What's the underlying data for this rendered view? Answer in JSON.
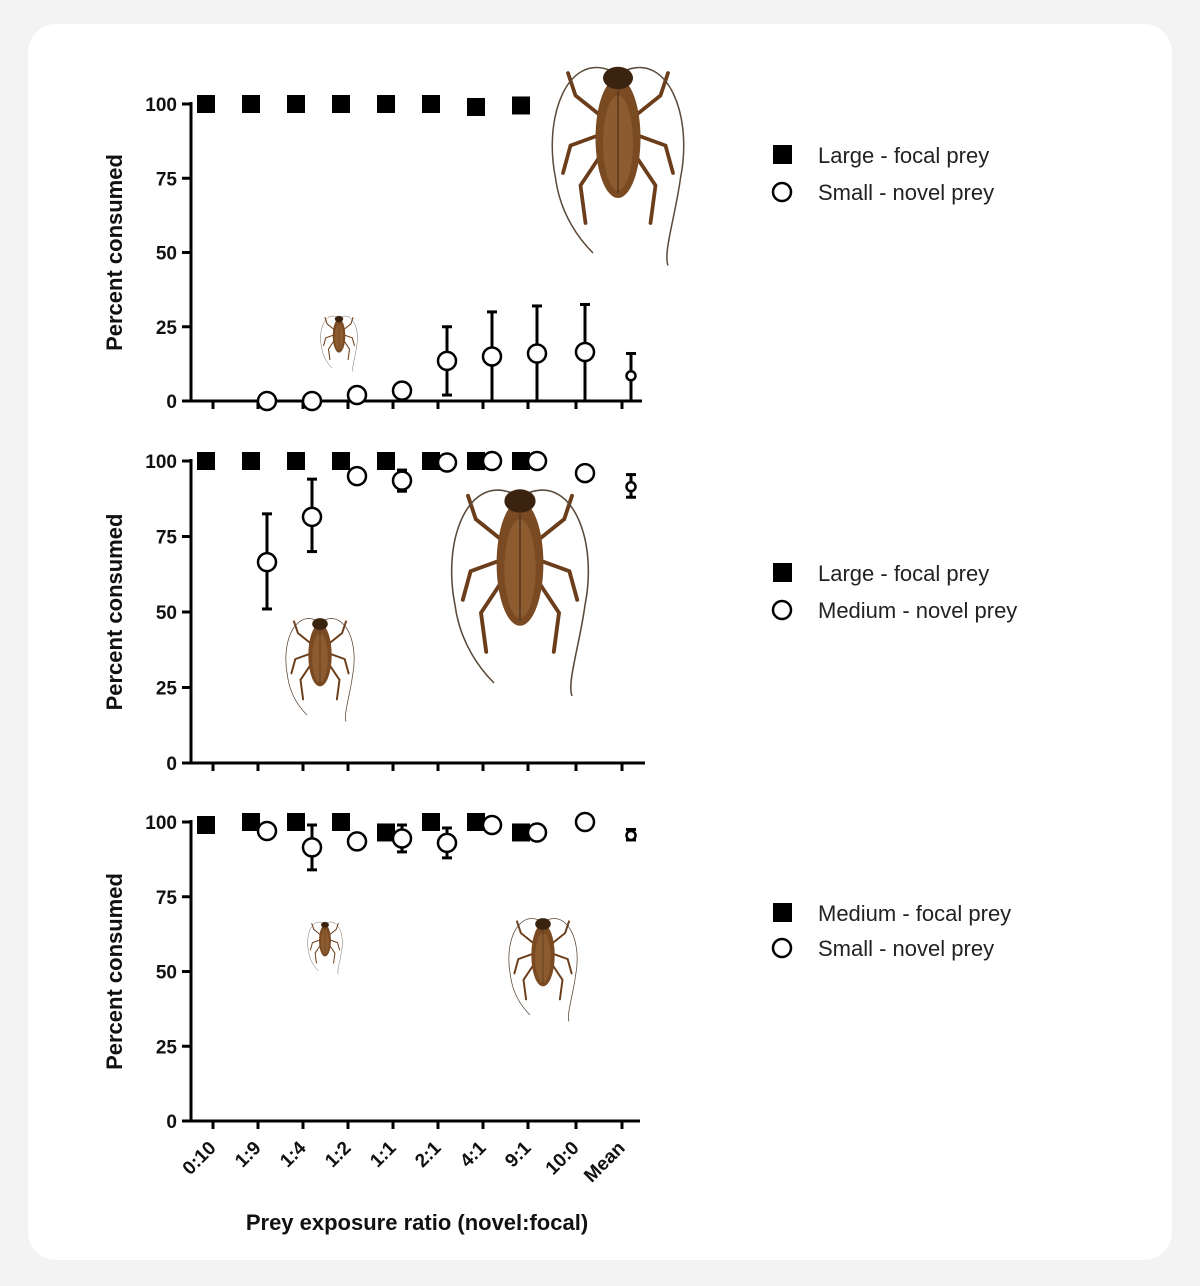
{
  "colors": {
    "ink": "#000000",
    "marker_fill_open": "#ffffff",
    "cockroach_body": "#7a4a22",
    "cockroach_dark": "#3a2410"
  },
  "shared": {
    "ylabel": "Percent consumed",
    "xlabel": "Prey exposure ratio (novel:focal)",
    "categories": [
      "0:10",
      "1:9",
      "1:4",
      "1:2",
      "1:1",
      "2:1",
      "4:1",
      "9:1",
      "10:0",
      "Mean"
    ],
    "yticks": [
      0,
      25,
      50,
      75,
      100
    ]
  },
  "chart_data": [
    {
      "type": "scatter",
      "title": "",
      "xlabel": "",
      "ylabel": "Percent consumed",
      "ylim": [
        0,
        100
      ],
      "categories": [
        "0:10",
        "1:9",
        "1:4",
        "1:2",
        "1:1",
        "2:1",
        "4:1",
        "9:1",
        "10:0",
        "Mean"
      ],
      "legend": "right",
      "series": [
        {
          "name": "Large - focal prey",
          "marker": "square-filled",
          "points": [
            {
              "x": "0:10",
              "y": 100
            },
            {
              "x": "1:9",
              "y": 100
            },
            {
              "x": "1:4",
              "y": 100
            },
            {
              "x": "1:2",
              "y": 100
            },
            {
              "x": "1:1",
              "y": 100
            },
            {
              "x": "2:1",
              "y": 100
            },
            {
              "x": "4:1",
              "y": 99
            },
            {
              "x": "9:1",
              "y": 99.5
            }
          ]
        },
        {
          "name": "Small - novel prey",
          "marker": "circle-open",
          "points": [
            {
              "x": "1:9",
              "y": 0
            },
            {
              "x": "1:4",
              "y": 0
            },
            {
              "x": "1:2",
              "y": 2
            },
            {
              "x": "1:1",
              "y": 3.5
            },
            {
              "x": "2:1",
              "y": 13.5,
              "err_low": 2,
              "err_high": 25
            },
            {
              "x": "4:1",
              "y": 15,
              "err_low": 0,
              "err_high": 30
            },
            {
              "x": "9:1",
              "y": 16,
              "err_low": 0,
              "err_high": 32
            },
            {
              "x": "10:0",
              "y": 16.5,
              "err_low": 0,
              "err_high": 32.5
            },
            {
              "x": "Mean",
              "y": 8.5,
              "err_low": 0,
              "err_high": 16,
              "small": true
            }
          ]
        }
      ]
    },
    {
      "type": "scatter",
      "title": "",
      "xlabel": "",
      "ylabel": "Percent consumed",
      "ylim": [
        0,
        100
      ],
      "categories": [
        "0:10",
        "1:9",
        "1:4",
        "1:2",
        "1:1",
        "2:1",
        "4:1",
        "9:1",
        "10:0",
        "Mean"
      ],
      "legend": "right",
      "series": [
        {
          "name": "Large - focal prey",
          "marker": "square-filled",
          "points": [
            {
              "x": "0:10",
              "y": 100
            },
            {
              "x": "1:9",
              "y": 100
            },
            {
              "x": "1:4",
              "y": 100
            },
            {
              "x": "1:2",
              "y": 100
            },
            {
              "x": "1:1",
              "y": 100
            },
            {
              "x": "2:1",
              "y": 100
            },
            {
              "x": "4:1",
              "y": 100
            },
            {
              "x": "9:1",
              "y": 100
            }
          ]
        },
        {
          "name": "Medium - novel prey",
          "marker": "circle-open",
          "points": [
            {
              "x": "1:9",
              "y": 66.5,
              "err_low": 51,
              "err_high": 82.5
            },
            {
              "x": "1:4",
              "y": 81.5,
              "err_low": 70,
              "err_high": 94
            },
            {
              "x": "1:2",
              "y": 95
            },
            {
              "x": "1:1",
              "y": 93.5,
              "err_low": 90,
              "err_high": 97
            },
            {
              "x": "2:1",
              "y": 99.5
            },
            {
              "x": "4:1",
              "y": 100
            },
            {
              "x": "9:1",
              "y": 100
            },
            {
              "x": "10:0",
              "y": 96
            },
            {
              "x": "Mean",
              "y": 91.5,
              "err_low": 88,
              "err_high": 95.5,
              "small": true
            }
          ]
        }
      ]
    },
    {
      "type": "scatter",
      "title": "",
      "xlabel": "Prey exposure ratio (novel:focal)",
      "ylabel": "Percent consumed",
      "ylim": [
        0,
        100
      ],
      "categories": [
        "0:10",
        "1:9",
        "1:4",
        "1:2",
        "1:1",
        "2:1",
        "4:1",
        "9:1",
        "10:0",
        "Mean"
      ],
      "legend": "right",
      "series": [
        {
          "name": "Medium - focal prey",
          "marker": "square-filled",
          "points": [
            {
              "x": "0:10",
              "y": 99
            },
            {
              "x": "1:9",
              "y": 100
            },
            {
              "x": "1:4",
              "y": 100
            },
            {
              "x": "1:2",
              "y": 100
            },
            {
              "x": "1:1",
              "y": 96.5
            },
            {
              "x": "2:1",
              "y": 100
            },
            {
              "x": "4:1",
              "y": 100
            },
            {
              "x": "9:1",
              "y": 96.5
            }
          ]
        },
        {
          "name": "Small - novel prey",
          "marker": "circle-open",
          "points": [
            {
              "x": "1:9",
              "y": 97
            },
            {
              "x": "1:4",
              "y": 91.5,
              "err_low": 84,
              "err_high": 99
            },
            {
              "x": "1:2",
              "y": 93.5
            },
            {
              "x": "1:1",
              "y": 94.5,
              "err_low": 90,
              "err_high": 99
            },
            {
              "x": "2:1",
              "y": 93,
              "err_low": 88,
              "err_high": 98
            },
            {
              "x": "4:1",
              "y": 99
            },
            {
              "x": "9:1",
              "y": 96.5,
              "err_low": 94,
              "err_high": 99
            },
            {
              "x": "10:0",
              "y": 100
            },
            {
              "x": "Mean",
              "y": 95.5,
              "err_low": 94,
              "err_high": 97.5,
              "small": true
            }
          ]
        }
      ]
    }
  ]
}
